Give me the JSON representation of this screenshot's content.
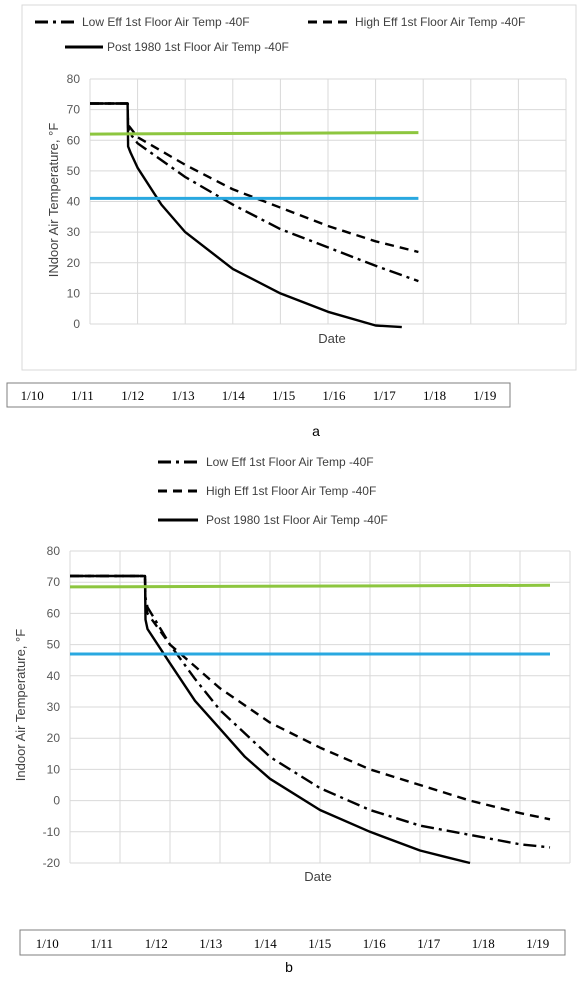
{
  "chart_data": [
    {
      "panel_label": "a",
      "type": "line",
      "title": "",
      "xlabel": "Date",
      "ylabel": "INdoor Air Temperature, °F",
      "ylim": [
        0,
        80
      ],
      "yticks": [
        0,
        10,
        20,
        30,
        40,
        50,
        60,
        70,
        80
      ],
      "xlim": [
        0,
        10
      ],
      "x_grid_lines": 10,
      "grid": true,
      "legend_position": "top",
      "date_labels": [
        "1/10",
        "1/11",
        "1/12",
        "1/13",
        "1/14",
        "1/15",
        "1/16",
        "1/17",
        "1/18",
        "1/19"
      ],
      "series": [
        {
          "name": "Low Eff 1st Floor Air Temp -40F",
          "style": "dash-dot",
          "color": "#000000",
          "x": [
            0,
            0.79,
            0.8,
            0.85,
            1.0,
            2.0,
            3.0,
            4.0,
            5.0,
            6.0,
            6.9
          ],
          "y": [
            72,
            72,
            64,
            62,
            59,
            48,
            39,
            31,
            25,
            19,
            14
          ]
        },
        {
          "name": "High Eff 1st Floor Air Temp -40F",
          "style": "dash",
          "color": "#000000",
          "x": [
            0,
            0.79,
            0.8,
            0.85,
            1.0,
            2.0,
            3.0,
            4.0,
            5.0,
            6.0,
            6.9
          ],
          "y": [
            72,
            72,
            65,
            64,
            61,
            52,
            44,
            38,
            32,
            27,
            23.5
          ]
        },
        {
          "name": "Post 1980 1st Floor Air Temp -40F",
          "style": "solid",
          "color": "#000000",
          "x": [
            0,
            0.79,
            0.8,
            0.85,
            1.0,
            1.5,
            2.0,
            3.0,
            4.0,
            5.0,
            6.0,
            6.55
          ],
          "y": [
            72,
            72,
            58,
            56,
            51,
            39,
            30,
            18,
            10,
            4,
            -0.5,
            -1
          ]
        },
        {
          "name": "",
          "style": "solid",
          "color": "#8dc63f",
          "x": [
            0,
            6.9
          ],
          "y": [
            62,
            62.5
          ]
        },
        {
          "name": "",
          "style": "solid",
          "color": "#29a8e0",
          "x": [
            0,
            6.9
          ],
          "y": [
            41,
            41
          ]
        }
      ]
    },
    {
      "panel_label": "b",
      "type": "line",
      "title": "",
      "xlabel": "Date",
      "ylabel": "Indoor Air Temperature, °F",
      "ylim": [
        -20,
        80
      ],
      "yticks": [
        -20,
        -10,
        0,
        10,
        20,
        30,
        40,
        50,
        60,
        70,
        80
      ],
      "xlim": [
        0,
        10
      ],
      "x_grid_lines": 10,
      "grid": true,
      "legend_position": "top",
      "date_labels": [
        "1/10",
        "1/11",
        "1/12",
        "1/13",
        "1/14",
        "1/15",
        "1/16",
        "1/17",
        "1/18",
        "1/19"
      ],
      "series": [
        {
          "name": "Low Eff 1st Floor Air Temp -40F",
          "style": "dash-dot",
          "color": "#000000",
          "x": [
            0,
            1.5,
            1.51,
            1.55,
            2.0,
            2.5,
            3.0,
            4.0,
            5.0,
            6.0,
            7.0,
            8.0,
            9.0,
            9.6
          ],
          "y": [
            72,
            72,
            65,
            62,
            50,
            39,
            29,
            14,
            4,
            -3,
            -8,
            -11,
            -14,
            -15
          ]
        },
        {
          "name": "High Eff 1st Floor Air Temp -40F",
          "style": "dash",
          "color": "#000000",
          "x": [
            0,
            1.5,
            1.51,
            1.55,
            2.0,
            2.5,
            3.0,
            4.0,
            5.0,
            6.0,
            7.0,
            8.0,
            9.0,
            9.6
          ],
          "y": [
            72,
            72,
            63,
            60,
            50,
            43,
            36,
            25,
            17,
            10,
            5,
            0,
            -4,
            -6
          ]
        },
        {
          "name": "Post 1980 1st Floor Air Temp -40F",
          "style": "solid",
          "color": "#000000",
          "x": [
            0,
            1.5,
            1.51,
            1.55,
            2.0,
            2.5,
            3.0,
            3.5,
            4.0,
            5.0,
            6.0,
            7.0,
            7.5,
            8.0
          ],
          "y": [
            72,
            72,
            58,
            55,
            44,
            32,
            23,
            14,
            7,
            -3,
            -10,
            -16,
            -18,
            -20
          ]
        },
        {
          "name": "",
          "style": "solid",
          "color": "#8dc63f",
          "x": [
            0,
            9.6
          ],
          "y": [
            68.5,
            69
          ]
        },
        {
          "name": "",
          "style": "solid",
          "color": "#29a8e0",
          "x": [
            0,
            9.6
          ],
          "y": [
            47,
            47
          ]
        }
      ]
    }
  ]
}
